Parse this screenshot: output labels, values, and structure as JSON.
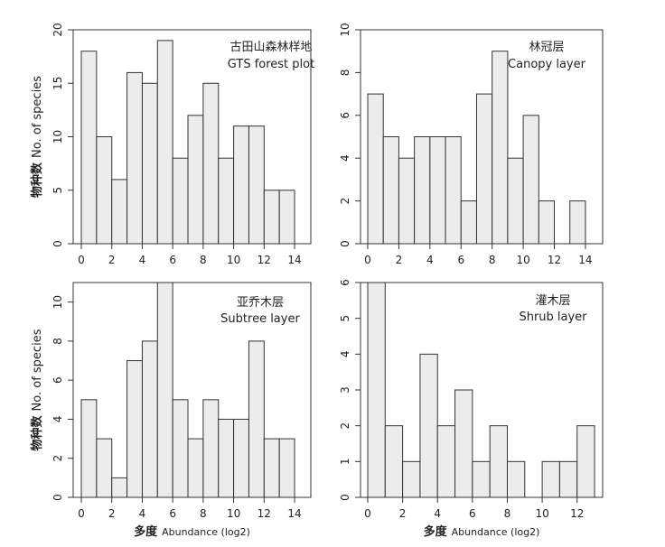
{
  "chart_data": [
    {
      "type": "bar",
      "title_zh": "古田山森林样地",
      "title_en": "GTS forest plot",
      "ylabel_zh": "物种数",
      "ylabel_en": "No. of species",
      "xlabel_zh": "",
      "xlabel_en": "",
      "xlim": [
        0,
        14
      ],
      "ylim": [
        0,
        20
      ],
      "xticks": [
        0,
        2,
        4,
        6,
        8,
        10,
        12,
        14
      ],
      "yticks": [
        0,
        5,
        10,
        15,
        20
      ],
      "bin_width": 1,
      "bin_starts": [
        0,
        1,
        2,
        3,
        4,
        5,
        6,
        7,
        8,
        9,
        10,
        11,
        12,
        13
      ],
      "values": [
        18,
        10,
        6,
        16,
        15,
        19,
        8,
        12,
        15,
        8,
        11,
        11,
        5,
        5
      ]
    },
    {
      "type": "bar",
      "title_zh": "林冠层",
      "title_en": "Canopy layer",
      "ylabel_zh": "",
      "ylabel_en": "",
      "xlabel_zh": "",
      "xlabel_en": "",
      "xlim": [
        0,
        14
      ],
      "ylim": [
        0,
        10
      ],
      "xticks": [
        0,
        2,
        4,
        6,
        8,
        10,
        12,
        14
      ],
      "yticks": [
        0,
        2,
        4,
        6,
        8,
        10
      ],
      "bin_width": 1,
      "bin_starts": [
        0,
        1,
        2,
        3,
        4,
        5,
        6,
        7,
        8,
        9,
        10,
        11,
        12,
        13
      ],
      "values": [
        7,
        5,
        4,
        5,
        5,
        5,
        2,
        7,
        9,
        4,
        6,
        2,
        0,
        2
      ]
    },
    {
      "type": "bar",
      "title_zh": "亚乔木层",
      "title_en": "Subtree layer",
      "ylabel_zh": "物种数",
      "ylabel_en": "No. of species",
      "xlabel_zh": "多度",
      "xlabel_en": "Abundance (log2)",
      "xlim": [
        0,
        14
      ],
      "ylim": [
        0,
        11
      ],
      "xticks": [
        0,
        2,
        4,
        6,
        8,
        10,
        12,
        14
      ],
      "yticks": [
        0,
        2,
        4,
        6,
        8,
        10
      ],
      "bin_width": 1,
      "bin_starts": [
        0,
        1,
        2,
        3,
        4,
        5,
        6,
        7,
        8,
        9,
        10,
        11,
        12,
        13
      ],
      "values": [
        5,
        3,
        1,
        7,
        8,
        11,
        5,
        3,
        5,
        4,
        4,
        8,
        3,
        3
      ]
    },
    {
      "type": "bar",
      "title_zh": "灌木层",
      "title_en": "Shrub layer",
      "ylabel_zh": "",
      "ylabel_en": "",
      "xlabel_zh": "多度",
      "xlabel_en": "Abundance (log2)",
      "xlim": [
        0,
        13
      ],
      "ylim": [
        0,
        6
      ],
      "xticks": [
        0,
        2,
        4,
        6,
        8,
        10,
        12
      ],
      "yticks": [
        0,
        1,
        2,
        3,
        4,
        5,
        6
      ],
      "bin_width": 1,
      "bin_starts": [
        0,
        1,
        2,
        3,
        4,
        5,
        6,
        7,
        8,
        9,
        10,
        11,
        12
      ],
      "values": [
        6,
        2,
        1,
        4,
        2,
        3,
        1,
        2,
        1,
        0,
        1,
        1,
        2
      ]
    }
  ]
}
